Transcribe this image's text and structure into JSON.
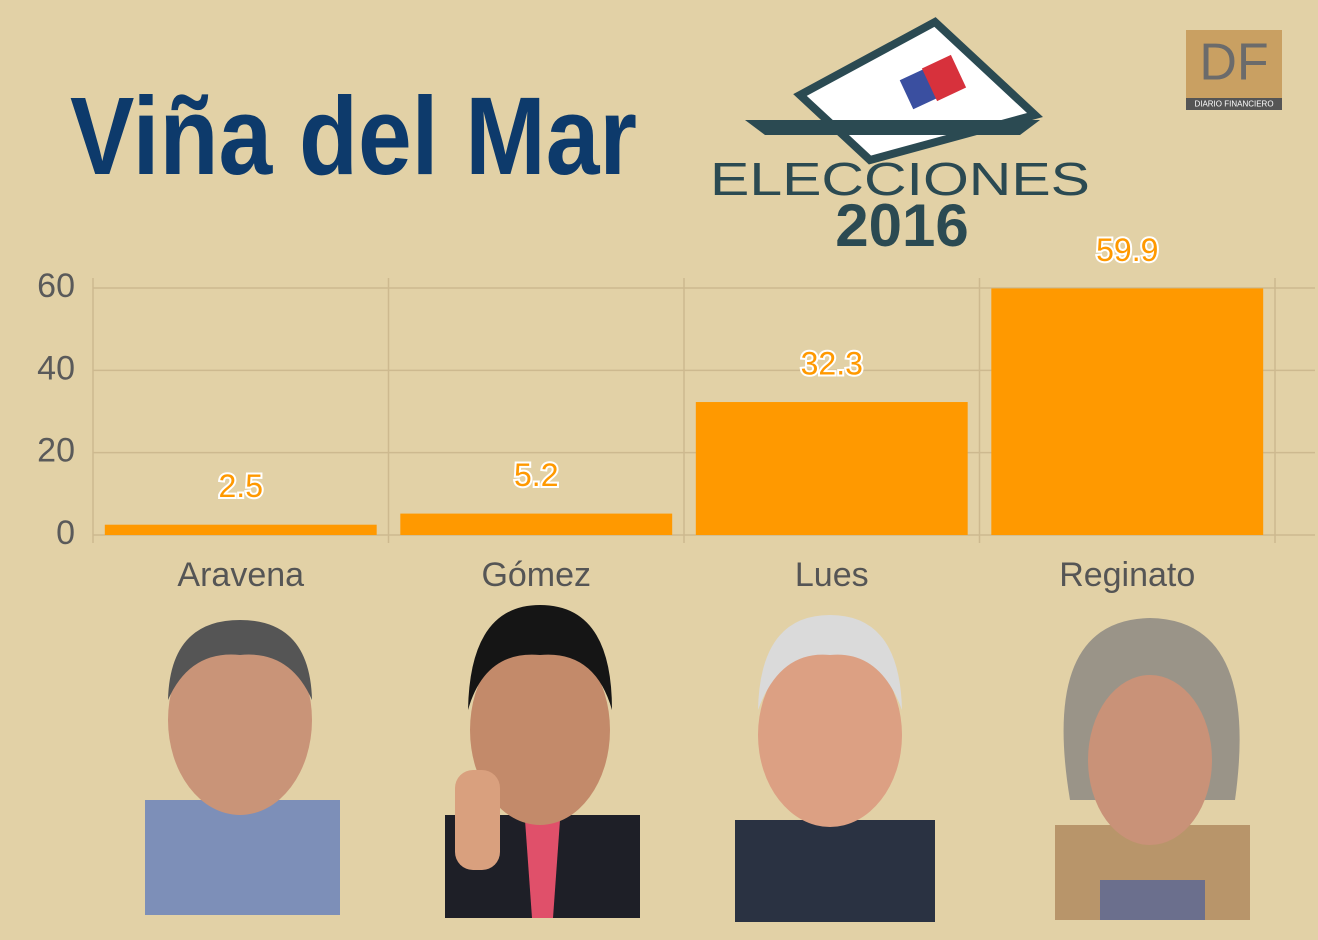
{
  "chart_data": {
    "type": "bar",
    "title": "Viña del Mar",
    "categories": [
      "Aravena",
      "Gómez",
      "Lues",
      "Reginato"
    ],
    "values": [
      2.5,
      5.2,
      32.3,
      59.9
    ],
    "color": "#ff9900",
    "ylim": [
      0,
      60
    ],
    "yticks": [
      0,
      20,
      40,
      60
    ],
    "grid": true
  },
  "logo": {
    "word": "ELECCIONES",
    "year": "2016"
  },
  "brand": {
    "mark": "DF",
    "name": "DIARIO FINANCIERO"
  }
}
